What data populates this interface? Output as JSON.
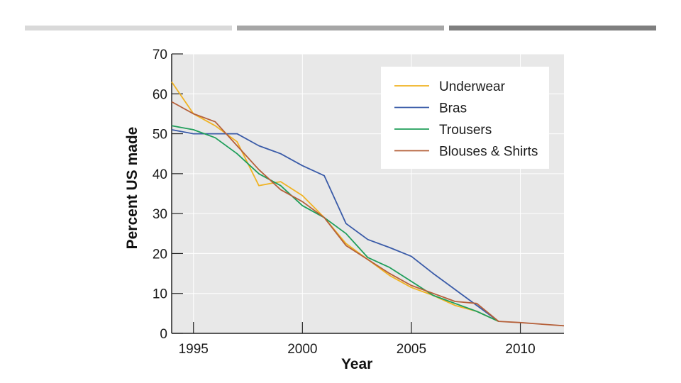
{
  "decor": {
    "bars": [
      {
        "color": "#d9d9d9"
      },
      {
        "color": "#a6a6a6"
      },
      {
        "color": "#7f7f7f"
      }
    ]
  },
  "chart_data": {
    "type": "line",
    "title": "",
    "xlabel": "Year",
    "ylabel": "Percent US made",
    "xlim": [
      1994,
      2012
    ],
    "ylim": [
      0,
      70
    ],
    "xticks": [
      1995,
      2000,
      2005,
      2010
    ],
    "yticks": [
      0,
      10,
      20,
      30,
      40,
      50,
      60,
      70
    ],
    "grid": true,
    "legend_position": "top-right",
    "background": "#e8e8e8",
    "series": [
      {
        "name": "Underwear",
        "color": "#f0b323",
        "x": [
          1994,
          1995,
          1996,
          1997,
          1998,
          1999,
          2000,
          2001,
          2002,
          2003,
          2004,
          2005,
          2006,
          2007,
          2008,
          2009
        ],
        "values": [
          63,
          55,
          52,
          48,
          37,
          38,
          34.5,
          29,
          22.5,
          18.5,
          14.5,
          11.5,
          9.5,
          7,
          5.5,
          3
        ]
      },
      {
        "name": "Bras",
        "color": "#3a5ba8",
        "x": [
          1994,
          1995,
          1996,
          1997,
          1998,
          1999,
          2000,
          2001,
          2002,
          2003,
          2004,
          2005,
          2006,
          2007,
          2008,
          2009
        ],
        "values": [
          51,
          50,
          50,
          50,
          47,
          45,
          42,
          39.5,
          27.5,
          23.5,
          21.5,
          19.3,
          15,
          11,
          7,
          3
        ]
      },
      {
        "name": "Trousers",
        "color": "#1f9e5a",
        "x": [
          1994,
          1995,
          1996,
          1997,
          1998,
          1999,
          2000,
          2001,
          2002,
          2003,
          2004,
          2005,
          2006,
          2007,
          2008,
          2009
        ],
        "values": [
          52,
          51,
          49,
          45,
          40,
          37,
          32,
          29,
          25,
          19,
          16.5,
          13,
          9.5,
          7.5,
          5.5,
          3
        ]
      },
      {
        "name": "Blouses & Shirts",
        "color": "#b5603a",
        "x": [
          1994,
          1995,
          1996,
          1997,
          1998,
          1999,
          2000,
          2001,
          2002,
          2003,
          2004,
          2005,
          2006,
          2007,
          2008,
          2009,
          2010,
          2011,
          2012
        ],
        "values": [
          58,
          55,
          53,
          47,
          41,
          36,
          33,
          29,
          22,
          18.5,
          15,
          12,
          10,
          8,
          7.5,
          3,
          2.7,
          2.3,
          1.9
        ]
      }
    ]
  }
}
